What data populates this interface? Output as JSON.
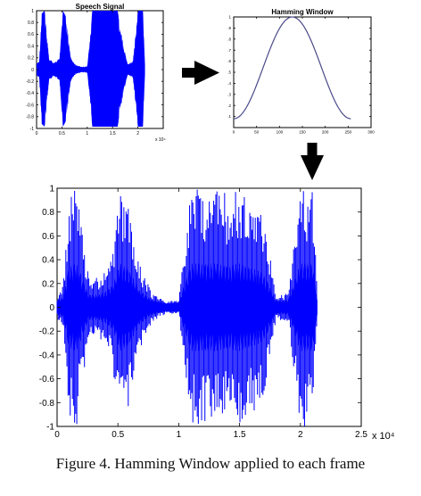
{
  "caption": "Figure 4. Hamming Window applied to each frame",
  "chart_data": [
    {
      "type": "area",
      "title": "Speech Signal",
      "color": "#0000ff",
      "xlim": [
        0,
        25000
      ],
      "ylim": [
        -1,
        1
      ],
      "x_ticks": [
        0,
        5000,
        10000,
        15000,
        20000
      ],
      "x_tick_labels": [
        "0",
        "0.5",
        "1",
        "1.5",
        "2"
      ],
      "x_exponent": "x 10⁴",
      "y_ticks": [
        -1,
        -0.8,
        -0.6,
        -0.4,
        -0.2,
        0,
        0.2,
        0.4,
        0.6,
        0.8,
        1
      ],
      "y_tick_labels": [
        "-1",
        "-0.8",
        "-0.6",
        "-0.4",
        "-0.2",
        "0",
        "0.2",
        "0.4",
        "0.6",
        "0.8",
        "1"
      ],
      "envelope": {
        "x": [
          0,
          500,
          1000,
          1600,
          2500,
          3500,
          4500,
          5200,
          5800,
          6800,
          7800,
          9000,
          10000,
          11000,
          12000,
          13000,
          14000,
          15000,
          16000,
          17000,
          18000,
          19000,
          20000,
          21000,
          21400
        ],
        "amplitude": [
          0.12,
          0.15,
          0.95,
          1.0,
          0.2,
          0.12,
          0.2,
          1.0,
          0.9,
          0.2,
          0.08,
          0.05,
          0.06,
          1.0,
          1.0,
          1.0,
          1.0,
          1.0,
          1.0,
          0.5,
          0.1,
          0.15,
          1.0,
          1.0,
          0.1
        ]
      }
    },
    {
      "type": "line",
      "title": "Hamming Window",
      "color": "#4a4a8a",
      "xlim": [
        0,
        300
      ],
      "ylim": [
        0,
        1
      ],
      "x_ticks": [
        0,
        50,
        100,
        150,
        200,
        250,
        300
      ],
      "x_tick_labels": [
        "0",
        "50",
        "100",
        "150",
        "200",
        "250",
        "300"
      ],
      "y_ticks": [
        0.1,
        0.2,
        0.3,
        0.4,
        0.5,
        0.6,
        0.7,
        0.8,
        0.9,
        1
      ],
      "y_tick_labels": [
        ".1",
        ".2",
        ".3",
        ".4",
        ".5",
        ".6",
        ".7",
        ".8",
        ".9",
        "1"
      ],
      "window_length": 256,
      "alpha": 0.54,
      "beta": 0.46
    },
    {
      "type": "area",
      "title": "",
      "color": "#0000ff",
      "xlim": [
        0,
        25000
      ],
      "ylim": [
        -1,
        1
      ],
      "x_ticks": [
        0,
        5000,
        10000,
        15000,
        20000,
        25000
      ],
      "x_tick_labels": [
        "0",
        "0.5",
        "1",
        "1.5",
        "2",
        "2.5"
      ],
      "x_exponent": "x 10⁴",
      "y_ticks": [
        -1,
        -0.8,
        -0.6,
        -0.4,
        -0.2,
        0,
        0.2,
        0.4,
        0.6,
        0.8,
        1
      ],
      "y_tick_labels": [
        "-1",
        "-0.8",
        "-0.6",
        "-0.4",
        "-0.2",
        "0",
        "0.2",
        "0.4",
        "0.6",
        "0.8",
        "1"
      ],
      "envelope": {
        "x": [
          0,
          500,
          1000,
          1600,
          2600,
          3500,
          4500,
          5200,
          5800,
          6800,
          7800,
          9000,
          10000,
          11000,
          12000,
          13000,
          14000,
          15000,
          16000,
          17000,
          18000,
          19000,
          20000,
          21000,
          21400
        ],
        "amplitude": [
          0.1,
          0.2,
          0.95,
          1.0,
          0.25,
          0.25,
          0.45,
          1.0,
          0.9,
          0.35,
          0.12,
          0.05,
          0.06,
          1.0,
          1.0,
          1.0,
          0.95,
          1.0,
          0.9,
          0.75,
          0.1,
          0.12,
          1.0,
          1.0,
          0.1
        ]
      },
      "windowed_frames": true
    }
  ]
}
